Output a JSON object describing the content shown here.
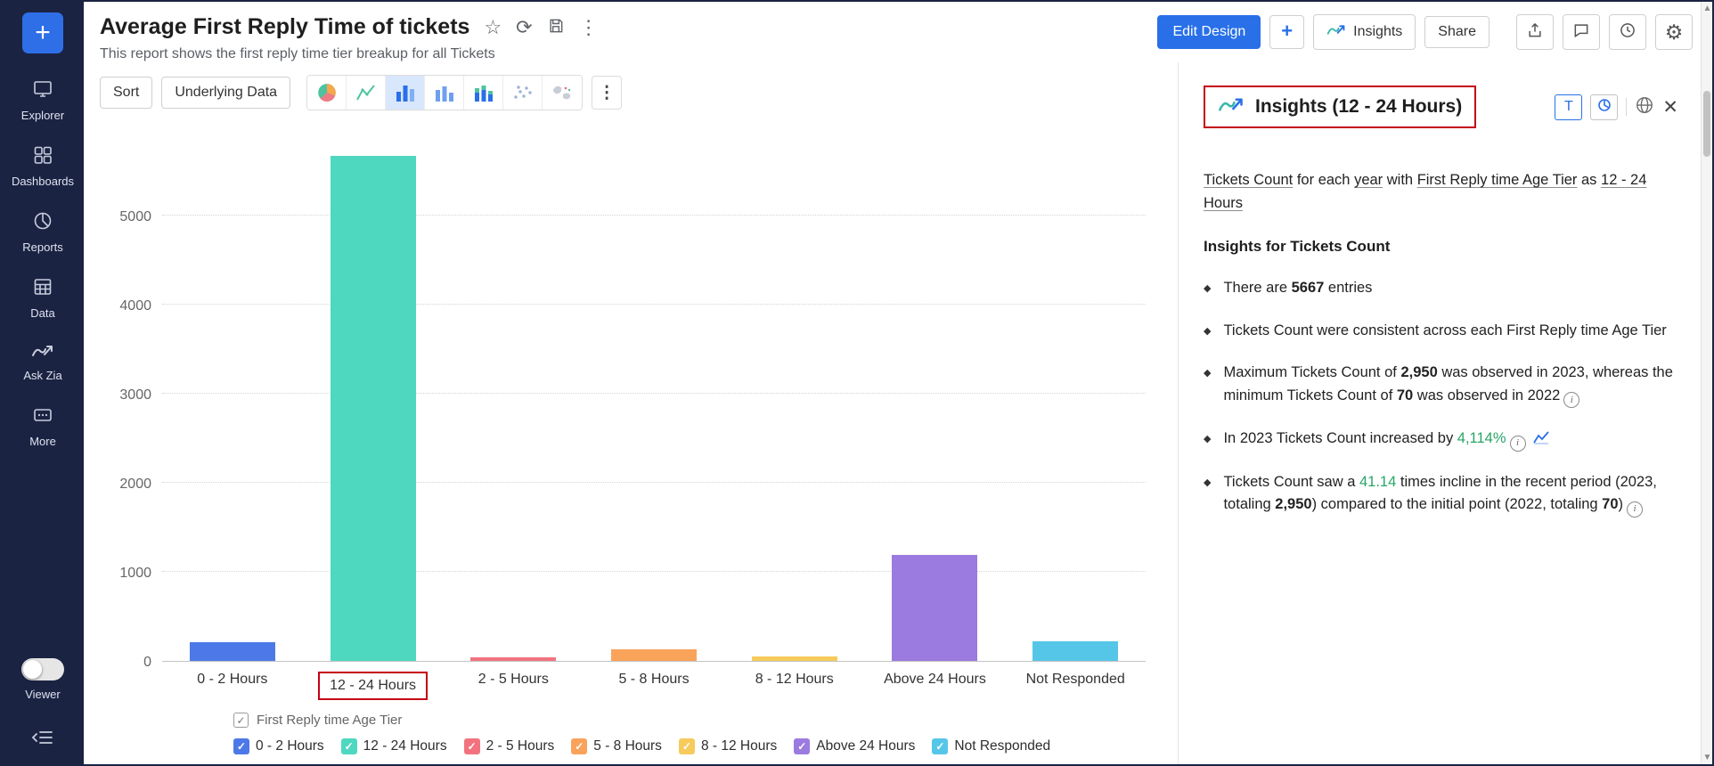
{
  "app": {
    "accent_blue": "#2970e8",
    "sidebar_bg": "#1b2342",
    "highlight_red": "#c40016"
  },
  "sidebar": {
    "plus": "+",
    "items": [
      {
        "label": "Explorer"
      },
      {
        "label": "Dashboards"
      },
      {
        "label": "Reports"
      },
      {
        "label": "Data"
      },
      {
        "label": "Ask Zia"
      },
      {
        "label": "More"
      }
    ],
    "viewer_label": "Viewer"
  },
  "header": {
    "title": "Average First Reply Time of tickets",
    "subtitle": "This report shows the first reply time tier breakup for all Tickets",
    "actions": {
      "edit_design": "Edit Design",
      "add": "+",
      "insights": "Insights",
      "share": "Share"
    }
  },
  "toolbar": {
    "sort": "Sort",
    "underlying_data": "Underlying Data"
  },
  "chart_data": {
    "type": "bar",
    "title": "",
    "xlabel": "",
    "ylabel": "",
    "categories": [
      "0 - 2 Hours",
      "12 - 24 Hours",
      "2 - 5 Hours",
      "5 - 8 Hours",
      "8 - 12 Hours",
      "Above 24 Hours",
      "Not Responded"
    ],
    "values": [
      210,
      5667,
      40,
      135,
      55,
      1190,
      220
    ],
    "colors": [
      "#4d79e8",
      "#4fd8c0",
      "#f2737f",
      "#f9a35b",
      "#f6cb5c",
      "#9b7be0",
      "#56c6e8"
    ],
    "ylim": [
      0,
      5750
    ],
    "yticks": [
      0,
      1000,
      2000,
      3000,
      4000,
      5000
    ],
    "grid": "dotted-horizontal",
    "highlighted_category": "12 - 24 Hours",
    "legend_title": "First Reply time Age Tier",
    "legend_position": "bottom"
  },
  "insights": {
    "panel_title": "Insights (12 - 24 Hours)",
    "text_mode_label": "T",
    "section_heading": "Insights for Tickets Count",
    "green": "#27a567",
    "summary": [
      {
        "t": "Tickets Count",
        "s": "link"
      },
      {
        "t": " for each "
      },
      {
        "t": "year",
        "s": "link"
      },
      {
        "t": " with "
      },
      {
        "t": "First Reply time Age Tier",
        "s": "link"
      },
      {
        "t": " as "
      },
      {
        "t": "12 - 24 Hours",
        "s": "link"
      }
    ],
    "bullets": [
      [
        {
          "t": "There are "
        },
        {
          "t": "5667",
          "s": "b"
        },
        {
          "t": " entries"
        }
      ],
      [
        {
          "t": "Tickets Count were consistent across each First Reply time Age Tier"
        }
      ],
      [
        {
          "t": "Maximum Tickets Count of "
        },
        {
          "t": "2,950",
          "s": "b"
        },
        {
          "t": " was observed in 2023, whereas the minimum Tickets Count of "
        },
        {
          "t": "70",
          "s": "b"
        },
        {
          "t": " was observed in 2022"
        },
        {
          "s": "icon-info"
        }
      ],
      [
        {
          "t": "In 2023 Tickets Count increased by "
        },
        {
          "t": "4,114%",
          "s": "g"
        },
        {
          "s": "icon-info"
        },
        {
          "s": "icon-trend"
        }
      ],
      [
        {
          "t": "Tickets Count saw a "
        },
        {
          "t": "41.14",
          "s": "g"
        },
        {
          "t": " times incline in the recent period (2023, totaling "
        },
        {
          "t": "2,950",
          "s": "b"
        },
        {
          "t": ") compared to the initial point (2022, totaling "
        },
        {
          "t": "70",
          "s": "b"
        },
        {
          "t": ")"
        },
        {
          "s": "icon-info"
        }
      ]
    ]
  }
}
